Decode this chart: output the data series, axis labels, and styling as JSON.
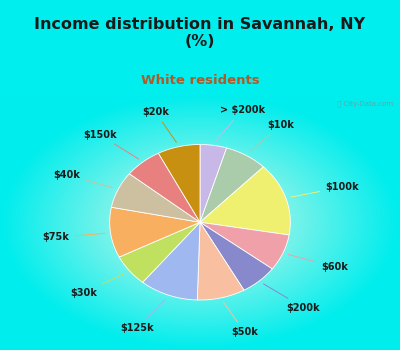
{
  "title": "Income distribution in Savannah, NY\n(%)",
  "subtitle": "White residents",
  "title_color": "#1a1a1a",
  "subtitle_color": "#b05a28",
  "bg_cyan": "#00EEEE",
  "labels": [
    "> $200k",
    "$10k",
    "$100k",
    "$60k",
    "$200k",
    "$50k",
    "$125k",
    "$30k",
    "$75k",
    "$40k",
    "$150k",
    "$20k"
  ],
  "sizes": [
    5,
    8,
    16,
    8,
    7,
    9,
    11,
    7,
    11,
    8,
    7,
    8
  ],
  "colors": [
    "#c8b8e8",
    "#aaccaa",
    "#f0f070",
    "#f0a0a8",
    "#8888cc",
    "#f8c0a0",
    "#a0b8f0",
    "#c0e060",
    "#f8b060",
    "#ccc0a0",
    "#e88080",
    "#c89010"
  ],
  "startangle": 90,
  "label_fontsize": 7.0,
  "label_color": "#1a1a1a",
  "title_fontsize": 11.5,
  "subtitle_fontsize": 9.5
}
